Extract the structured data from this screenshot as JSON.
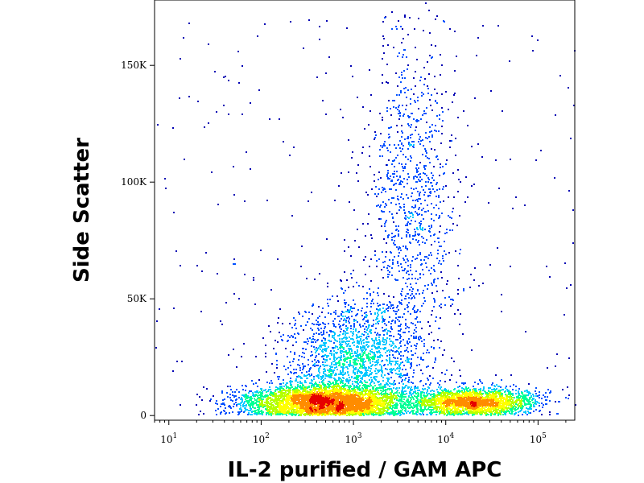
{
  "chart_data": {
    "type": "scatter",
    "subtype": "flow-cytometry density dot plot",
    "xlabel": "IL-2 purified / GAM APC",
    "ylabel": "Side Scatter",
    "x_scale": "log",
    "xlim": [
      7,
      250000
    ],
    "ylim": [
      -2000,
      178000
    ],
    "x_ticks": [
      {
        "value": 10,
        "base": "10",
        "exp": "1"
      },
      {
        "value": 100,
        "base": "10",
        "exp": "2"
      },
      {
        "value": 1000,
        "base": "10",
        "exp": "3"
      },
      {
        "value": 10000,
        "base": "10",
        "exp": "4"
      },
      {
        "value": 100000,
        "base": "10",
        "exp": "5"
      }
    ],
    "y_ticks": [
      {
        "value": 0,
        "label": "0"
      },
      {
        "value": 50000,
        "label": "50K"
      },
      {
        "value": 100000,
        "label": "100K"
      },
      {
        "value": 150000,
        "label": "150K"
      }
    ],
    "grid": false,
    "legend": "none",
    "density_colors": [
      "#0000b4",
      "#0050ff",
      "#00c8ff",
      "#00ff96",
      "#b4ff00",
      "#ffff00",
      "#ff8c00",
      "#e60000"
    ],
    "populations": [
      {
        "x_center": 500,
        "y_center": 6000,
        "x_spread_decades": 0.45,
        "y_spread": 4000,
        "share": 0.45
      },
      {
        "x_center": 20000,
        "y_center": 6000,
        "x_spread_decades": 0.35,
        "y_spread": 3000,
        "share": 0.25
      },
      {
        "x_center": 4000,
        "y_center": 90000,
        "x_spread_decades": 0.25,
        "y_spread": 40000,
        "share": 0.12
      },
      {
        "x_center": 1000,
        "y_center": 25000,
        "x_spread_decades": 0.35,
        "y_spread": 12000,
        "share": 0.18
      }
    ]
  }
}
